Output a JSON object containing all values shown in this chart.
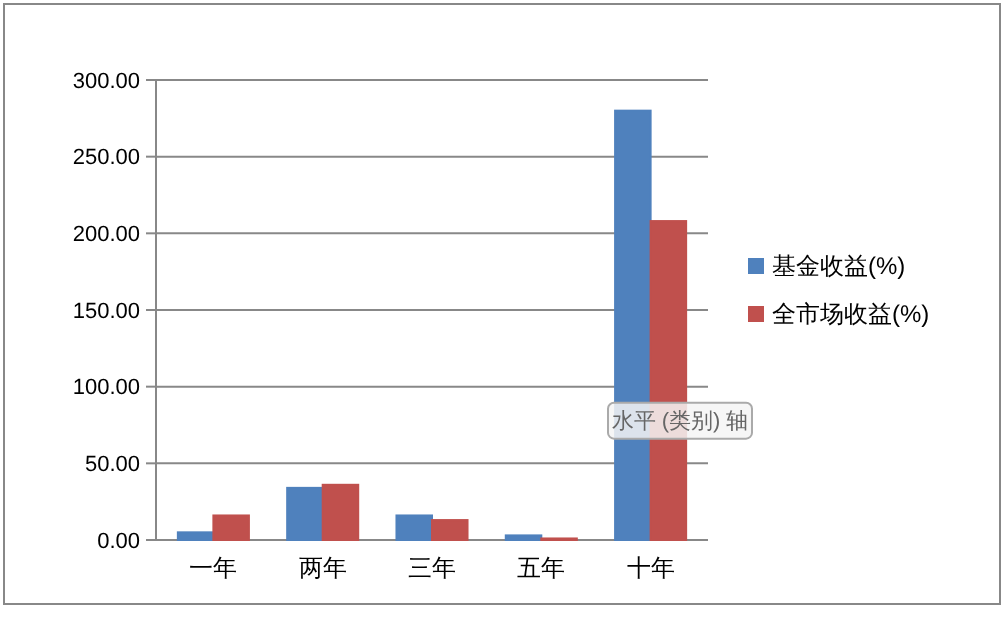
{
  "chart_data": {
    "type": "bar",
    "categories": [
      "一年",
      "两年",
      "三年",
      "五年",
      "十年"
    ],
    "series": [
      {
        "name": "基金收益(%)",
        "color": "#4f81bd",
        "values": [
          5,
          34,
          16,
          3,
          280
        ]
      },
      {
        "name": "全市场收益(%)",
        "color": "#c0504d",
        "values": [
          16,
          36,
          13,
          1,
          208
        ]
      }
    ],
    "ylim": [
      0,
      300
    ],
    "yticks": [
      {
        "value": 0,
        "label": "0.00"
      },
      {
        "value": 50,
        "label": "50.00"
      },
      {
        "value": 100,
        "label": "100.00"
      },
      {
        "value": 150,
        "label": "150.00"
      },
      {
        "value": 200,
        "label": "200.00"
      },
      {
        "value": 250,
        "label": "250.00"
      },
      {
        "value": 300,
        "label": "300.00"
      }
    ],
    "grid": "y",
    "legend": "right",
    "annotations": [
      "水平 (类别) 轴"
    ]
  }
}
